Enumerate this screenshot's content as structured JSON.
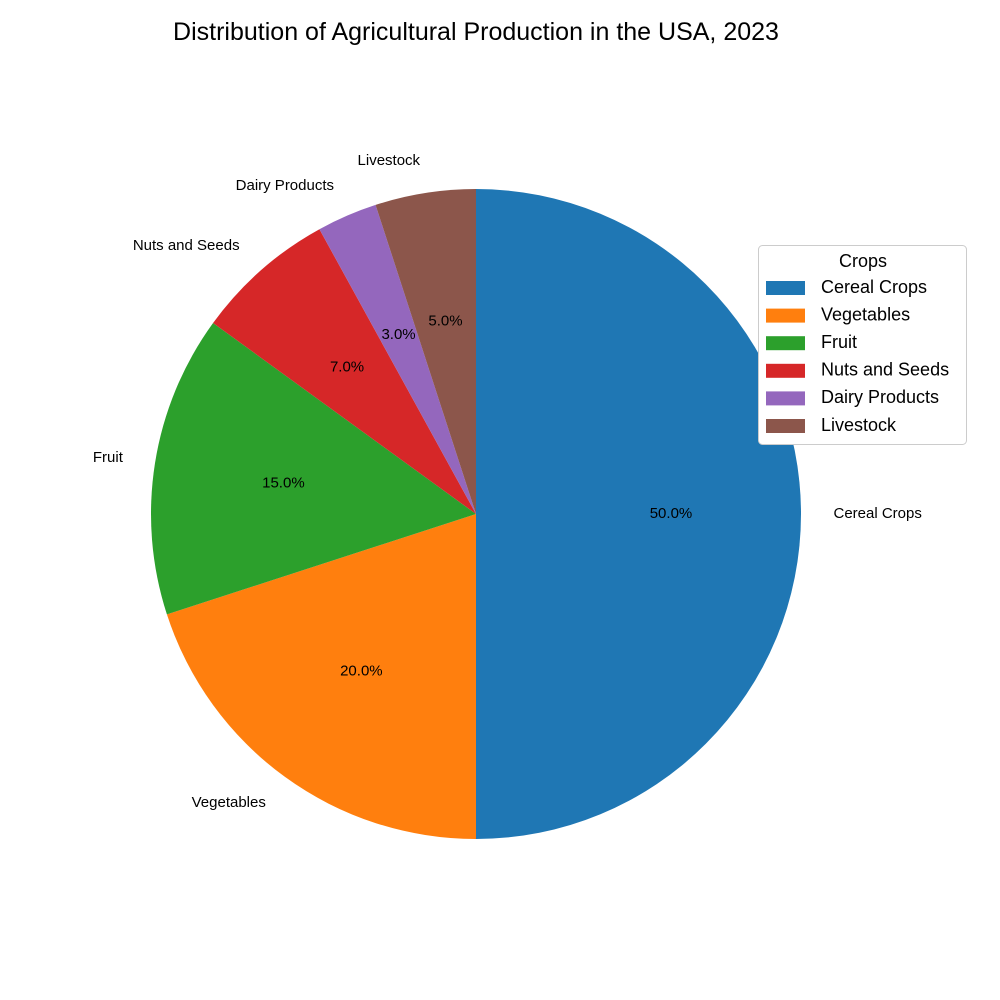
{
  "chart_data": {
    "type": "pie",
    "title": "Distribution of Agricultural Production in the USA, 2023",
    "categories": [
      "Cereal Crops",
      "Vegetables",
      "Fruit",
      "Nuts and Seeds",
      "Dairy Products",
      "Livestock"
    ],
    "values": [
      50.0,
      20.0,
      15.0,
      7.0,
      3.0,
      5.0
    ],
    "percent_labels": [
      "50.0%",
      "20.0%",
      "15.0%",
      "7.0%",
      "3.0%",
      "5.0%"
    ],
    "colors": [
      "#1f77b4",
      "#ff7f0e",
      "#2ca02c",
      "#d62728",
      "#9467bd",
      "#8c564b"
    ],
    "start_angle_deg": 90,
    "direction": "clockwise",
    "legend": {
      "title": "Crops",
      "placement": "right",
      "entries": [
        "Cereal Crops",
        "Vegetables",
        "Fruit",
        "Nuts and Seeds",
        "Dairy Products",
        "Livestock"
      ]
    }
  }
}
